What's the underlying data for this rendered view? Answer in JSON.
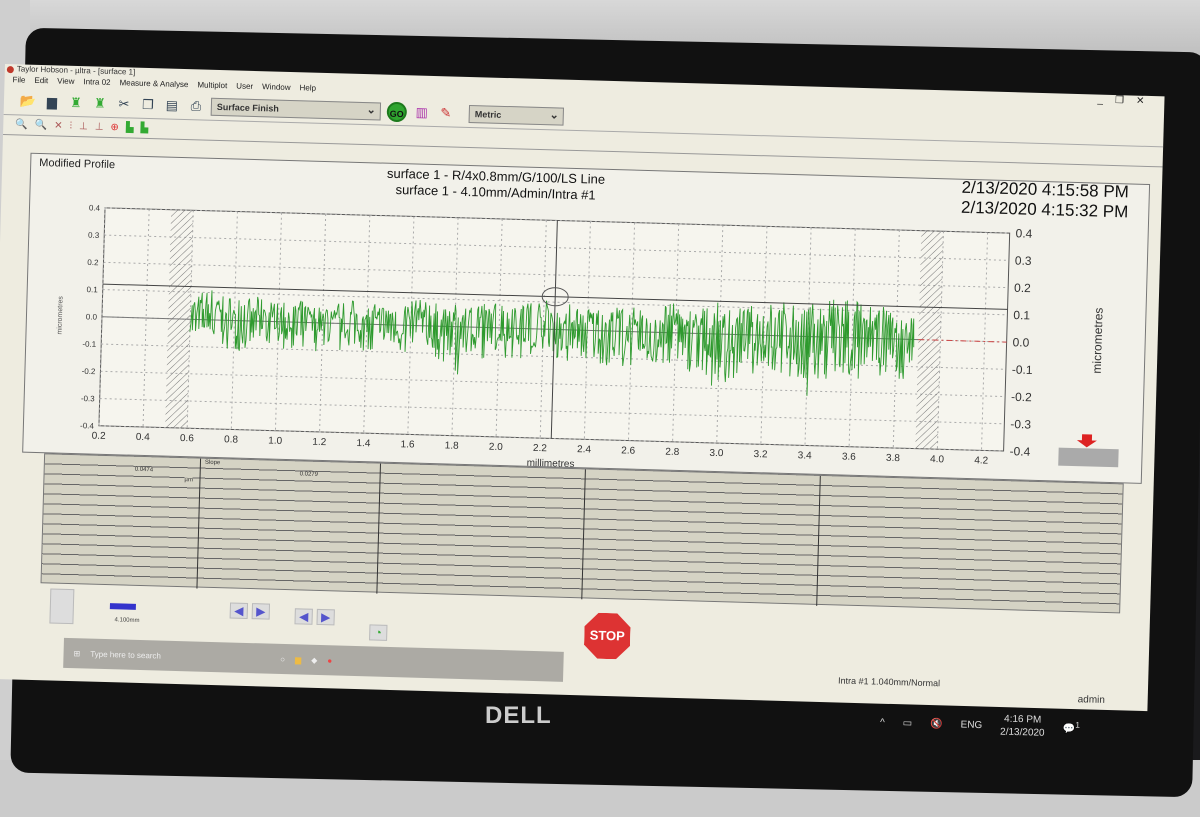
{
  "window": {
    "title": "Taylor Hobson - µltra - [surface 1]",
    "controls": [
      "_",
      "❐",
      "✕"
    ]
  },
  "menu": [
    "File",
    "Edit",
    "View",
    "Intra 02",
    "Measure & Analyse",
    "Multiplot",
    "User",
    "Window",
    "Help"
  ],
  "toolbar": {
    "program_select": "Surface Finish",
    "go_label": "GO",
    "units_select": "Metric",
    "icons": [
      "open-folder-icon",
      "save-icon",
      "load-icon",
      "load-all-icon",
      "cut-icon",
      "copy-icon",
      "paste-icon",
      "print-icon"
    ]
  },
  "panel": {
    "title": "Modified Profile",
    "chart_title_1": "surface 1 - R/4x0.8mm/G/100/LS Line",
    "chart_title_2": "surface 1 - 4.10mm/Admin/Intra #1",
    "timestamp_1": "2/13/2020 4:15:58 PM",
    "timestamp_2": "2/13/2020 4:15:32 PM"
  },
  "chart_data": {
    "type": "line",
    "xlabel": "millimetres",
    "ylabel_left": "micrometres",
    "ylabel_right": "micrometres",
    "xlim": [
      0.2,
      4.3
    ],
    "ylim": [
      -0.4,
      0.4
    ],
    "xticks": [
      "0.2",
      "0.4",
      "0.6",
      "0.8",
      "1.0",
      "1.2",
      "1.4",
      "1.6",
      "1.8",
      "2.0",
      "2.2",
      "2.4",
      "2.6",
      "2.8",
      "3.0",
      "3.2",
      "3.4",
      "3.6",
      "3.8",
      "4.0",
      "4.2"
    ],
    "yticks": [
      "0.4",
      "0.3",
      "0.2",
      "0.1",
      "0.0",
      "-0.1",
      "-0.2",
      "-0.3",
      "-0.4"
    ],
    "grid": true,
    "series_color": "#2e9a2e",
    "excluded_regions": [
      [
        0.5,
        0.6
      ],
      [
        3.9,
        4.0
      ]
    ],
    "cursor": {
      "x": 2.25,
      "y": 0.12
    },
    "profile_x": [
      0.6,
      0.7,
      0.8,
      0.9,
      1.0,
      1.1,
      1.2,
      1.3,
      1.4,
      1.5,
      1.6,
      1.7,
      1.8,
      1.9,
      2.0,
      2.1,
      2.2,
      2.3,
      2.4,
      2.5,
      2.6,
      2.7,
      2.8,
      2.9,
      3.0,
      3.1,
      3.2,
      3.3,
      3.4,
      3.5,
      3.6,
      3.7,
      3.8,
      3.88
    ],
    "profile_peak": [
      0.1,
      0.12,
      0.08,
      0.09,
      0.07,
      0.08,
      0.06,
      0.09,
      0.08,
      0.07,
      0.1,
      0.09,
      0.08,
      0.09,
      0.1,
      0.12,
      0.11,
      0.1,
      0.09,
      0.1,
      0.09,
      0.1,
      0.11,
      0.09,
      0.12,
      0.1,
      0.12,
      0.13,
      0.12,
      0.14,
      0.15,
      0.13,
      0.1,
      0.08
    ],
    "profile_valley": [
      -0.05,
      -0.1,
      -0.12,
      -0.1,
      -0.11,
      -0.1,
      -0.12,
      -0.1,
      -0.11,
      -0.1,
      -0.12,
      -0.13,
      -0.19,
      -0.12,
      -0.11,
      -0.12,
      -0.13,
      -0.12,
      -0.11,
      -0.13,
      -0.14,
      -0.12,
      -0.14,
      -0.15,
      -0.22,
      -0.14,
      -0.15,
      -0.16,
      -0.23,
      -0.15,
      -0.16,
      -0.15,
      -0.17,
      -0.14
    ]
  },
  "results": {
    "param1_value": "0.0474",
    "param1_unit": "µm",
    "param2_label": "Slope",
    "param2_value": "0.0279",
    "length": "4.100mm",
    "stop_label": "STOP"
  },
  "taskbar": {
    "search_placeholder": "Type here to search",
    "language": "ENG",
    "time": "4:16 PM",
    "date": "2/13/2020",
    "notifications": "1"
  },
  "status": {
    "left": "Intra #1 1.040mm/Normal",
    "user": "admin"
  },
  "brand": "DELL"
}
